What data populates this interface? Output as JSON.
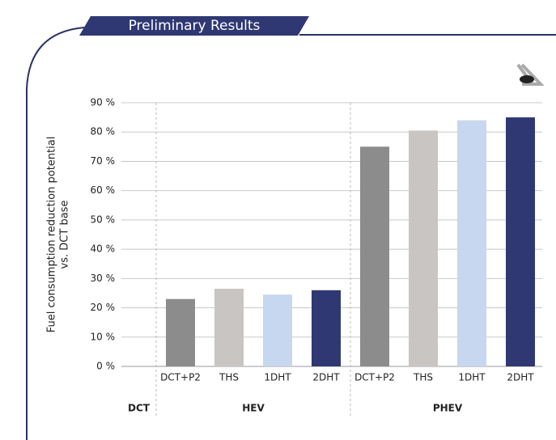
{
  "banner": "Preliminary Results",
  "chart_data": {
    "type": "bar",
    "ylabel": [
      "Fuel consumption reduction potential",
      "vs. DCT base"
    ],
    "ylim": [
      0,
      90
    ],
    "yticks": [
      {
        "value": 0,
        "label": "0 %"
      },
      {
        "value": 10,
        "label": "10 %"
      },
      {
        "value": 20,
        "label": "20 %"
      },
      {
        "value": 30,
        "label": "30 %"
      },
      {
        "value": 40,
        "label": "40 %"
      },
      {
        "value": 50,
        "label": "50 %"
      },
      {
        "value": 60,
        "label": "60 %"
      },
      {
        "value": 70,
        "label": "70 %"
      },
      {
        "value": 80,
        "label": "80 %"
      },
      {
        "value": 90,
        "label": "90 %"
      }
    ],
    "grid": true,
    "colors": [
      "#8c8c8c",
      "#c9c5c3",
      "#c6d7ef",
      "#2f3873"
    ],
    "groups": [
      {
        "name": "DCT",
        "categories": [],
        "values": []
      },
      {
        "name": "HEV",
        "categories": [
          "DCT+P2",
          "THS",
          "1DHT",
          "2DHT"
        ],
        "values": [
          23,
          26.5,
          24.5,
          26
        ]
      },
      {
        "name": "PHEV",
        "categories": [
          "DCT+P2",
          "THS",
          "1DHT",
          "2DHT"
        ],
        "values": [
          75,
          80.5,
          84,
          85
        ]
      }
    ]
  }
}
